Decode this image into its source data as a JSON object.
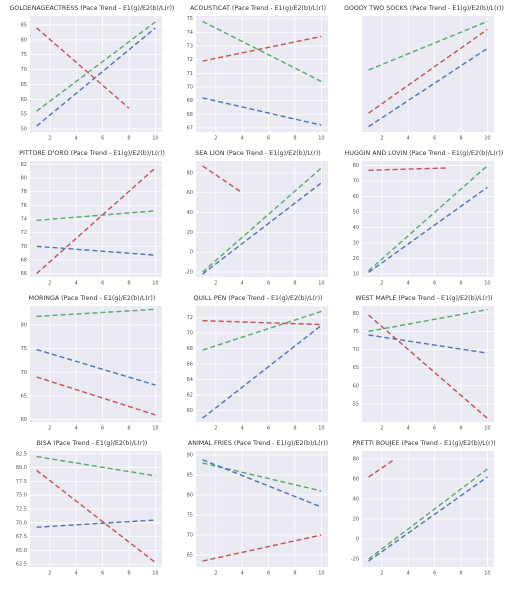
{
  "chart_data": [
    {
      "type": "line",
      "title": "GOLDENAGEACTRESS (Pace Trend - E1(g)/E2(b)/L(r))",
      "xlim": [
        0.5,
        10.5
      ],
      "xticks": [
        2,
        4,
        6,
        8,
        10
      ],
      "ylim": [
        49,
        88
      ],
      "yticks": [
        50,
        55,
        60,
        65,
        70,
        75,
        80,
        85
      ],
      "grid": true,
      "series": [
        {
          "color": "#55a868",
          "x": [
            1,
            10
          ],
          "values": [
            56,
            86
          ]
        },
        {
          "color": "#4c72b0",
          "x": [
            1,
            10
          ],
          "values": [
            51,
            84
          ]
        },
        {
          "color": "#c44e52",
          "x": [
            1,
            8
          ],
          "values": [
            84,
            57
          ]
        }
      ]
    },
    {
      "type": "line",
      "title": "ACOUSTICAT (Pace Trend - E1(g)/E2(b)/L(r))",
      "xlim": [
        0.5,
        10.5
      ],
      "xticks": [
        2,
        4,
        6,
        8,
        10
      ],
      "ylim": [
        66.7,
        75.2
      ],
      "yticks": [
        67,
        68,
        69,
        70,
        71,
        72,
        73,
        74,
        75
      ],
      "grid": true,
      "series": [
        {
          "color": "#55a868",
          "x": [
            1,
            10
          ],
          "values": [
            74.8,
            70.4
          ]
        },
        {
          "color": "#4c72b0",
          "x": [
            1,
            10
          ],
          "values": [
            69.2,
            67.2
          ]
        },
        {
          "color": "#c44e52",
          "x": [
            1,
            10
          ],
          "values": [
            71.9,
            73.7
          ]
        }
      ]
    },
    {
      "type": "line",
      "title": "GOODY TWO SOCKS (Pace Trend - E1(g)/E2(b)/L(r))",
      "xlim": [
        0.5,
        10.5
      ],
      "xticks": [
        2,
        4,
        6,
        8,
        10
      ],
      "ylim": [
        40,
        83
      ],
      "grid": true,
      "series": [
        {
          "color": "#55a868",
          "x": [
            1,
            10
          ],
          "values": [
            63,
            81
          ]
        },
        {
          "color": "#4c72b0",
          "x": [
            1,
            10
          ],
          "values": [
            42,
            71
          ]
        },
        {
          "color": "#c44e52",
          "x": [
            1,
            10
          ],
          "values": [
            47,
            78
          ]
        }
      ]
    },
    {
      "type": "line",
      "title": "PITTORE D'ORO (Pace Trend - E1(g)/E2(b)/L(r))",
      "xlim": [
        0.5,
        10.5
      ],
      "xticks": [
        2,
        4,
        6,
        8,
        10
      ],
      "ylim": [
        65.5,
        82.5
      ],
      "yticks": [
        66,
        68,
        70,
        72,
        74,
        76,
        78,
        80,
        82
      ],
      "grid": true,
      "series": [
        {
          "color": "#55a868",
          "x": [
            1,
            10
          ],
          "values": [
            73.8,
            75.2
          ]
        },
        {
          "color": "#4c72b0",
          "x": [
            1,
            10
          ],
          "values": [
            70,
            68.7
          ]
        },
        {
          "color": "#c44e52",
          "x": [
            1,
            10
          ],
          "values": [
            66,
            81.5
          ]
        }
      ]
    },
    {
      "type": "line",
      "title": "SEA LION (Pace Trend - E1(g)/E2(b)/L(r))",
      "xlim": [
        0.5,
        10.5
      ],
      "xticks": [
        2,
        4,
        6,
        8,
        10
      ],
      "ylim": [
        -25,
        92
      ],
      "yticks": [
        -20,
        0,
        20,
        40,
        60,
        80
      ],
      "grid": true,
      "series": [
        {
          "color": "#55a868",
          "x": [
            1,
            10
          ],
          "values": [
            -20,
            85
          ]
        },
        {
          "color": "#4c72b0",
          "x": [
            1,
            10
          ],
          "values": [
            -22,
            70
          ]
        },
        {
          "color": "#c44e52",
          "x": [
            1,
            4
          ],
          "values": [
            87,
            60
          ]
        }
      ]
    },
    {
      "type": "line",
      "title": "HUGGIN AND LOVIN (Pace Trend - E1(g)/E2(b)/L(r))",
      "xlim": [
        0.5,
        10.5
      ],
      "xticks": [
        2,
        4,
        6,
        8,
        10
      ],
      "ylim": [
        8,
        83
      ],
      "yticks": [
        10,
        20,
        30,
        40,
        50,
        60,
        70,
        80
      ],
      "grid": true,
      "series": [
        {
          "color": "#55a868",
          "x": [
            1,
            10
          ],
          "values": [
            12,
            80
          ]
        },
        {
          "color": "#4c72b0",
          "x": [
            1,
            10
          ],
          "values": [
            11,
            66
          ]
        },
        {
          "color": "#c44e52",
          "x": [
            1,
            7
          ],
          "values": [
            77,
            78.5
          ]
        }
      ]
    },
    {
      "type": "line",
      "title": "MORINGA (Pace Trend - E1(g)/E2(b)/L(r))",
      "xlim": [
        0.5,
        10.5
      ],
      "xticks": [
        2,
        4,
        6,
        8,
        10
      ],
      "ylim": [
        59.5,
        84
      ],
      "yticks": [
        60,
        65,
        70,
        75,
        80
      ],
      "grid": true,
      "series": [
        {
          "color": "#55a868",
          "x": [
            1,
            10
          ],
          "values": [
            81.8,
            83.3
          ]
        },
        {
          "color": "#4c72b0",
          "x": [
            1,
            10
          ],
          "values": [
            74.8,
            67.3
          ]
        },
        {
          "color": "#c44e52",
          "x": [
            1,
            10
          ],
          "values": [
            69,
            61
          ]
        }
      ]
    },
    {
      "type": "line",
      "title": "QUILL PEN (Pace Trend - E1(g)/E2(b)/L(r))",
      "xlim": [
        0.5,
        10.5
      ],
      "xticks": [
        2,
        4,
        6,
        8,
        10
      ],
      "ylim": [
        58.5,
        73.5
      ],
      "yticks": [
        60,
        62,
        64,
        66,
        68,
        70,
        72
      ],
      "grid": true,
      "series": [
        {
          "color": "#55a868",
          "x": [
            1,
            10
          ],
          "values": [
            67.8,
            72.8
          ]
        },
        {
          "color": "#4c72b0",
          "x": [
            1,
            10
          ],
          "values": [
            59,
            71
          ]
        },
        {
          "color": "#c44e52",
          "x": [
            1,
            10
          ],
          "values": [
            71.6,
            71.1
          ]
        }
      ]
    },
    {
      "type": "line",
      "title": "WEST MAPLE (Pace Trend - E1(g)/E2(b)/L(r))",
      "xlim": [
        0.5,
        10.5
      ],
      "xticks": [
        2,
        4,
        6,
        8,
        10
      ],
      "ylim": [
        50,
        82
      ],
      "yticks": [
        55,
        60,
        65,
        70,
        75,
        80
      ],
      "grid": true,
      "series": [
        {
          "color": "#55a868",
          "x": [
            1,
            10
          ],
          "values": [
            75,
            81
          ]
        },
        {
          "color": "#4c72b0",
          "x": [
            1,
            10
          ],
          "values": [
            74,
            69
          ]
        },
        {
          "color": "#c44e52",
          "x": [
            1,
            10
          ],
          "values": [
            79.5,
            51
          ]
        }
      ]
    },
    {
      "type": "line",
      "title": "BISA (Pace Trend - E1(g)/E2(b)/L(r))",
      "xlim": [
        0.5,
        10.5
      ],
      "xticks": [
        2,
        4,
        6,
        8,
        10
      ],
      "ylim": [
        62,
        83
      ],
      "yticks": [
        62.5,
        {
          "value": 65,
          "label": "65.0"
        },
        67.5,
        {
          "value": 70,
          "label": "70.0"
        },
        72.5,
        {
          "value": 75,
          "label": "75.0"
        },
        77.5,
        {
          "value": 80,
          "label": "80.0"
        },
        82.5
      ],
      "grid": true,
      "series": [
        {
          "color": "#55a868",
          "x": [
            1,
            10
          ],
          "values": [
            82,
            78.5
          ]
        },
        {
          "color": "#4c72b0",
          "x": [
            1,
            10
          ],
          "values": [
            69.2,
            70.5
          ]
        },
        {
          "color": "#c44e52",
          "x": [
            1,
            10
          ],
          "values": [
            79.5,
            62.8
          ]
        }
      ]
    },
    {
      "type": "line",
      "title": "ANIMAL FRIES (Pace Trend - E1(g)/E2(b)/L(r))",
      "xlim": [
        0.5,
        10.5
      ],
      "xticks": [
        2,
        4,
        6,
        8,
        10
      ],
      "ylim": [
        62,
        91
      ],
      "yticks": [
        65,
        70,
        75,
        80,
        85,
        90
      ],
      "grid": true,
      "series": [
        {
          "color": "#55a868",
          "x": [
            1,
            10
          ],
          "values": [
            88,
            81
          ]
        },
        {
          "color": "#4c72b0",
          "x": [
            1,
            10
          ],
          "values": [
            88.8,
            77
          ]
        },
        {
          "color": "#c44e52",
          "x": [
            1,
            10
          ],
          "values": [
            63.5,
            70
          ]
        }
      ]
    },
    {
      "type": "line",
      "title": "PRETTI BOUJEE (Pace Trend - E1(g)/E2(b)/L(r))",
      "xlim": [
        0.5,
        10.5
      ],
      "xticks": [
        2,
        4,
        6,
        8,
        10
      ],
      "ylim": [
        -28,
        88
      ],
      "yticks": [
        -20,
        0,
        20,
        40,
        60,
        80
      ],
      "grid": true,
      "series": [
        {
          "color": "#55a868",
          "x": [
            1,
            10
          ],
          "values": [
            -20,
            70
          ]
        },
        {
          "color": "#4c72b0",
          "x": [
            1,
            10
          ],
          "values": [
            -22,
            62
          ]
        },
        {
          "color": "#c44e52",
          "x": [
            1,
            3
          ],
          "values": [
            62,
            80
          ]
        }
      ]
    }
  ]
}
